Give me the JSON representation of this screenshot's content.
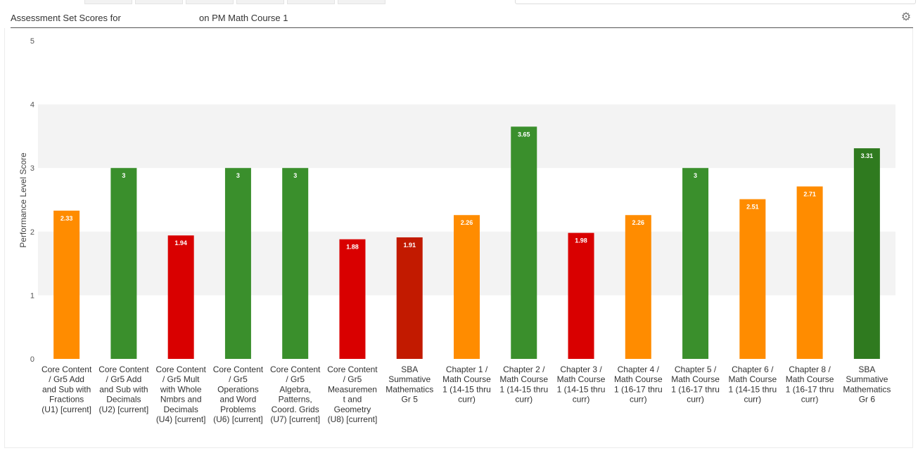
{
  "header": {
    "title_left": "Assessment Set Scores for",
    "title_right": "on PM Math Course 1",
    "settings_icon": "gear-icon"
  },
  "chart_data": {
    "type": "bar",
    "title": "",
    "ylabel": "Performance Level Score",
    "xlabel": "",
    "ylim": [
      0,
      5
    ],
    "yticks": [
      0,
      1,
      2,
      3,
      4,
      5
    ],
    "grid_bands": [
      [
        1,
        2
      ],
      [
        3,
        4
      ]
    ],
    "categories": [
      [
        "Core Content",
        "/ Gr5 Add",
        "and Sub with",
        "Fractions",
        "(U1) [current]"
      ],
      [
        "Core Content",
        "/ Gr5 Add",
        "and Sub with",
        "Decimals",
        "(U2) [current]"
      ],
      [
        "Core Content",
        "/ Gr5 Mult",
        "with Whole",
        "Nmbrs and",
        "Decimals",
        "(U4) [current]"
      ],
      [
        "Core Content",
        "/ Gr5",
        "Operations",
        "and Word",
        "Problems",
        "(U6) [current]"
      ],
      [
        "Core Content",
        "/ Gr5",
        "Algebra,",
        "Patterns,",
        "Coord. Grids",
        "(U7) [current]"
      ],
      [
        "Core Content",
        "/ Gr5",
        "Measuremen",
        "t and",
        "Geometry",
        "(U8) [current]"
      ],
      [
        "SBA",
        "Summative",
        "Mathematics",
        "Gr 5"
      ],
      [
        "Chapter 1 /",
        "Math Course",
        "1 (14-15 thru",
        "curr)"
      ],
      [
        "Chapter 2 /",
        "Math Course",
        "1 (14-15 thru",
        "curr)"
      ],
      [
        "Chapter 3 /",
        "Math Course",
        "1 (14-15 thru",
        "curr)"
      ],
      [
        "Chapter 4 /",
        "Math Course",
        "1 (16-17 thru",
        "curr)"
      ],
      [
        "Chapter 5 /",
        "Math Course",
        "1 (16-17 thru",
        "curr)"
      ],
      [
        "Chapter 6 /",
        "Math Course",
        "1 (14-15 thru",
        "curr)"
      ],
      [
        "Chapter 8 /",
        "Math Course",
        "1 (16-17 thru",
        "curr)"
      ],
      [
        "SBA",
        "Summative",
        "Mathematics",
        "Gr 6"
      ]
    ],
    "values": [
      2.33,
      3,
      1.94,
      3,
      3,
      1.88,
      1.91,
      2.26,
      3.65,
      1.98,
      2.26,
      3,
      2.51,
      2.71,
      3.31
    ],
    "labels": [
      "2.33",
      "3",
      "1.94",
      "3",
      "3",
      "1.88",
      "1.91",
      "2.26",
      "3.65",
      "1.98",
      "2.26",
      "3",
      "2.51",
      "2.71",
      "3.31"
    ],
    "colors": [
      "#ff8c00",
      "#3a8f2c",
      "#d90000",
      "#3a8f2c",
      "#3a8f2c",
      "#d90000",
      "#c21a00",
      "#ff8c00",
      "#3a8f2c",
      "#d90000",
      "#ff8c00",
      "#3a8f2c",
      "#ff8c00",
      "#ff8c00",
      "#2f7a1f"
    ]
  }
}
